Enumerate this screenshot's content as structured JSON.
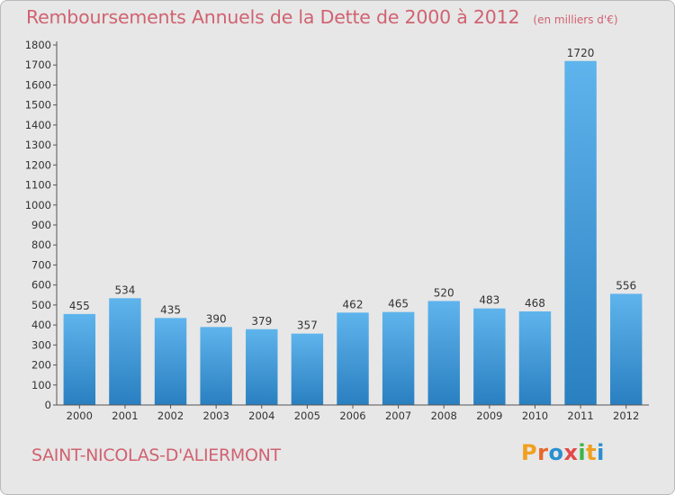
{
  "header": {
    "title": "Remboursements Annuels de la Dette de 2000 à 2012",
    "unit": "(en milliers d'€)"
  },
  "footer": {
    "commune": "SAINT-NICOLAS-D'ALIERMONT",
    "logo": {
      "letters": [
        "P",
        "r",
        "o",
        "x",
        "i",
        "t",
        "i"
      ],
      "colors": [
        "#f0a020",
        "#e8662a",
        "#2a8fd0",
        "#e24a4a",
        "#3bb54a",
        "#f0a020",
        "#2a8fd0"
      ]
    }
  },
  "colors": {
    "bar_top": "#5fb4ec",
    "bar_bottom": "#2a7fc0",
    "text": "#333333",
    "accent": "#d06271"
  },
  "chart_data": {
    "type": "bar",
    "title": "Remboursements Annuels de la Dette de 2000 à 2012",
    "categories": [
      "2000",
      "2001",
      "2002",
      "2003",
      "2004",
      "2005",
      "2006",
      "2007",
      "2008",
      "2009",
      "2010",
      "2011",
      "2012"
    ],
    "values": [
      455,
      534,
      435,
      390,
      379,
      357,
      462,
      465,
      520,
      483,
      468,
      1720,
      556
    ],
    "ylim": [
      0,
      1800
    ],
    "yticks": [
      0,
      100,
      200,
      300,
      400,
      500,
      600,
      700,
      800,
      900,
      1000,
      1100,
      1200,
      1300,
      1400,
      1500,
      1600,
      1700,
      1800
    ],
    "grid": false,
    "data_labels": true
  }
}
